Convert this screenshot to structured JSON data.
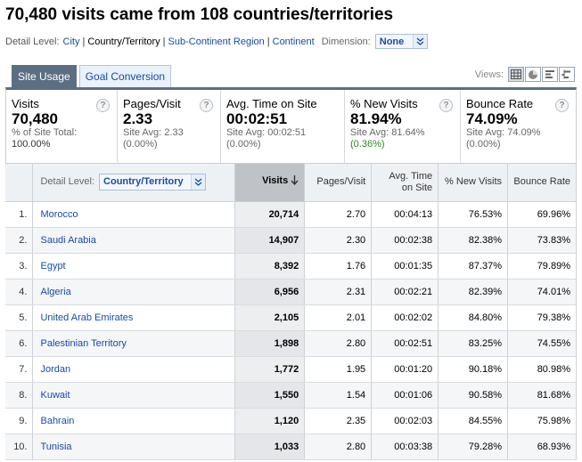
{
  "page": {
    "title": "70,480 visits came from 108 countries/territories"
  },
  "detail_level": {
    "label": "Detail Level:",
    "options": [
      "City",
      "Country/Territory",
      "Sub-Continent Region",
      "Continent"
    ],
    "current": "Country/Territory",
    "dimension_label": "Dimension:",
    "dimension_value": "None"
  },
  "tabs": [
    {
      "label": "Site Usage",
      "active": true
    },
    {
      "label": "Goal Conversion",
      "active": false
    }
  ],
  "views": {
    "label": "Views:",
    "buttons": [
      "table-view-icon",
      "pie-view-icon",
      "performance-view-icon",
      "comparison-view-icon"
    ]
  },
  "scorecards": [
    {
      "name": "Visits",
      "value": "70,480",
      "sub1": "% of Site Total:",
      "sub2": "100.00%",
      "help": "?"
    },
    {
      "name": "Pages/Visit",
      "value": "2.33",
      "sub1": "Site Avg: 2.33",
      "sub2": "(0.00%)",
      "help": "?"
    },
    {
      "name": "Avg. Time on Site",
      "value": "00:02:51",
      "sub1": "Site Avg: 00:02:51",
      "sub2": "(0.00%)",
      "help": "?"
    },
    {
      "name": "% New Visits",
      "value": "81.94%",
      "sub1": "Site Avg: 81.64%",
      "sub2": "(0.36%)",
      "help": "?"
    },
    {
      "name": "Bounce Rate",
      "value": "74.09%",
      "sub1": "Site Avg: 74.09%",
      "sub2": "(0.00%)",
      "help": "?"
    }
  ],
  "table": {
    "detail_label": "Detail Level:",
    "detail_value": "Country/Territory",
    "columns": [
      "Visits",
      "Pages/Visit",
      "Avg. Time on Site",
      "% New Visits",
      "Bounce Rate"
    ],
    "rows": [
      {
        "idx": "1.",
        "country": "Morocco",
        "visits": "20,714",
        "ppv": "2.70",
        "time": "00:04:13",
        "new": "76.53%",
        "bounce": "69.96%"
      },
      {
        "idx": "2.",
        "country": "Saudi Arabia",
        "visits": "14,907",
        "ppv": "2.30",
        "time": "00:02:38",
        "new": "82.38%",
        "bounce": "73.83%"
      },
      {
        "idx": "3.",
        "country": "Egypt",
        "visits": "8,392",
        "ppv": "1.76",
        "time": "00:01:35",
        "new": "87.37%",
        "bounce": "79.89%"
      },
      {
        "idx": "4.",
        "country": "Algeria",
        "visits": "6,956",
        "ppv": "2.31",
        "time": "00:02:21",
        "new": "82.39%",
        "bounce": "74.01%"
      },
      {
        "idx": "5.",
        "country": "United Arab Emirates",
        "visits": "2,105",
        "ppv": "2.01",
        "time": "00:02:02",
        "new": "84.80%",
        "bounce": "79.38%"
      },
      {
        "idx": "6.",
        "country": "Palestinian Territory",
        "visits": "1,898",
        "ppv": "2.80",
        "time": "00:02:51",
        "new": "83.25%",
        "bounce": "74.55%"
      },
      {
        "idx": "7.",
        "country": "Jordan",
        "visits": "1,772",
        "ppv": "1.95",
        "time": "00:01:20",
        "new": "90.18%",
        "bounce": "80.98%"
      },
      {
        "idx": "8.",
        "country": "Kuwait",
        "visits": "1,550",
        "ppv": "1.54",
        "time": "00:01:06",
        "new": "90.58%",
        "bounce": "81.68%"
      },
      {
        "idx": "9.",
        "country": "Bahrain",
        "visits": "1,120",
        "ppv": "2.35",
        "time": "00:02:03",
        "new": "84.55%",
        "bounce": "75.98%"
      },
      {
        "idx": "10.",
        "country": "Tunisia",
        "visits": "1,033",
        "ppv": "2.80",
        "time": "00:03:38",
        "new": "79.28%",
        "bounce": "68.93%"
      }
    ]
  },
  "colors": {
    "link": "#1a4aa6",
    "tab_active": "#5c6f82",
    "green": "#2b8a1c"
  }
}
